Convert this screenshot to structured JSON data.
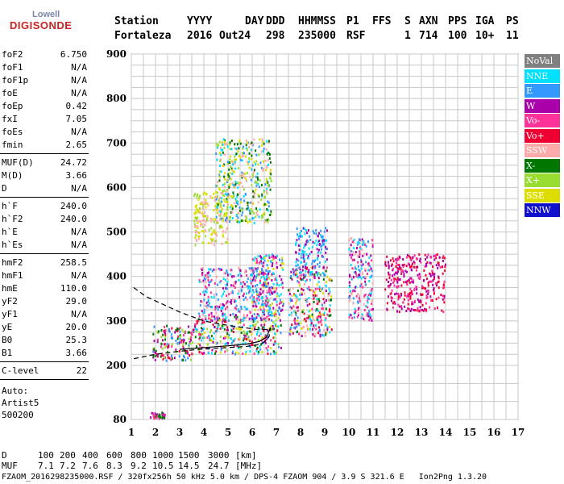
{
  "logo": {
    "line1": "Lowell",
    "line2": "DIGISONDE"
  },
  "header": {
    "labels": [
      "Station",
      "YYYY",
      "DAY",
      "DDD",
      "HHMMSS",
      "P1",
      "FFS",
      "S",
      "AXN",
      "PPS",
      "IGA",
      "PS"
    ],
    "values": [
      "Fortaleza",
      "2016",
      "Out24",
      "298",
      "235000",
      "RSF",
      "",
      "1",
      "714",
      "100",
      "10+",
      "11"
    ]
  },
  "params_group1": [
    {
      "label": "foF2",
      "value": "6.750"
    },
    {
      "label": "foF1",
      "value": "N/A"
    },
    {
      "label": "foF1p",
      "value": "N/A"
    },
    {
      "label": "foE",
      "value": "N/A"
    },
    {
      "label": "foEp",
      "value": "0.42"
    },
    {
      "label": "fxI",
      "value": "7.05"
    },
    {
      "label": "foEs",
      "value": "N/A"
    },
    {
      "label": "fmin",
      "value": "2.65"
    }
  ],
  "params_group2": [
    {
      "label": "MUF(D)",
      "value": "24.72"
    },
    {
      "label": "M(D)",
      "value": "3.66"
    },
    {
      "label": "D",
      "value": "N/A"
    }
  ],
  "params_group3": [
    {
      "label": "h`F",
      "value": "240.0"
    },
    {
      "label": "h`F2",
      "value": "240.0"
    },
    {
      "label": "h`E",
      "value": "N/A"
    },
    {
      "label": "h`Es",
      "value": "N/A"
    }
  ],
  "params_group4": [
    {
      "label": "hmF2",
      "value": "258.5"
    },
    {
      "label": "hmF1",
      "value": "N/A"
    },
    {
      "label": "hmE",
      "value": "110.0"
    },
    {
      "label": "yF2",
      "value": "29.0"
    },
    {
      "label": "yF1",
      "value": "N/A"
    },
    {
      "label": "yE",
      "value": "20.0"
    },
    {
      "label": "B0",
      "value": "25.3"
    },
    {
      "label": "B1",
      "value": "3.66"
    }
  ],
  "clevel": {
    "label": "C-level",
    "value": "22"
  },
  "auto": {
    "line1": "Auto:",
    "line2": "Artist5",
    "line3": "500200"
  },
  "legend": [
    {
      "label": "NoVal",
      "color": "#808080"
    },
    {
      "label": "NNE",
      "color": "#00e0ff"
    },
    {
      "label": "E",
      "color": "#3399ff"
    },
    {
      "label": "W",
      "color": "#aa00aa"
    },
    {
      "label": "Vo-",
      "color": "#ff3399"
    },
    {
      "label": "Vo+",
      "color": "#ee0033"
    },
    {
      "label": "SSW",
      "color": "#ffaaaa"
    },
    {
      "label": "X-",
      "color": "#007700"
    },
    {
      "label": "X+",
      "color": "#99dd33"
    },
    {
      "label": "SSE",
      "color": "#dddd00"
    },
    {
      "label": "NNW",
      "color": "#1111cc"
    }
  ],
  "bottom": {
    "d_label": "D",
    "d_values": [
      "100",
      "200",
      "400",
      "600",
      "800",
      "1000",
      "1500",
      "3000"
    ],
    "d_unit": "[km]",
    "muf_label": "MUF",
    "muf_values": [
      "7.1",
      "7.2",
      "7.6",
      "8.3",
      "9.2",
      "10.5",
      "14.5",
      "24.7"
    ],
    "muf_unit": "[MHz]",
    "footer": "FZAOM_2016298235000.RSF / 320fx256h 50 kHz 5.0 km / DPS-4 FZAOM 904 / 3.9 S 321.6 E   Ion2Png 1.3.20"
  },
  "chart_data": {
    "type": "scatter",
    "xlim": [
      1,
      17
    ],
    "ylim": [
      80,
      900
    ],
    "x_ticks": [
      1,
      2,
      3,
      4,
      5,
      6,
      7,
      8,
      9,
      10,
      11,
      12,
      13,
      14,
      15,
      16,
      17
    ],
    "y_ticks": [
      80,
      200,
      300,
      400,
      500,
      600,
      700,
      800,
      900
    ],
    "grid": true,
    "legend_position": "right",
    "clusters": [
      {
        "x": [
          1.8,
          2.4
        ],
        "y": [
          80,
          95
        ],
        "colors": [
          "#aa00aa",
          "#007700",
          "#ff3399"
        ]
      },
      {
        "x": [
          1.9,
          3.5
        ],
        "y": [
          210,
          290
        ],
        "colors": [
          "#ee0033",
          "#007700",
          "#99dd33",
          "#3399ff",
          "#ff3399",
          "#aa00aa"
        ]
      },
      {
        "x": [
          3.5,
          7.2
        ],
        "y": [
          225,
          310
        ],
        "colors": [
          "#ee0033",
          "#ff3399",
          "#007700",
          "#99dd33",
          "#dddd00",
          "#3399ff",
          "#aa00aa",
          "#00e0ff"
        ]
      },
      {
        "x": [
          3.8,
          6.8
        ],
        "y": [
          300,
          420
        ],
        "colors": [
          "#aa00aa",
          "#ff3399",
          "#3399ff",
          "#ffaaaa",
          "#00e0ff"
        ]
      },
      {
        "x": [
          6.0,
          7.3
        ],
        "y": [
          310,
          450
        ],
        "colors": [
          "#00e0ff",
          "#3399ff",
          "#aa00aa",
          "#dddd00",
          "#ff3399"
        ]
      },
      {
        "x": [
          7.5,
          9.3
        ],
        "y": [
          265,
          420
        ],
        "colors": [
          "#ee0033",
          "#ff3399",
          "#aa00aa",
          "#3399ff",
          "#00e0ff",
          "#007700",
          "#dddd00",
          "#ffaaaa"
        ]
      },
      {
        "x": [
          7.8,
          9.1
        ],
        "y": [
          400,
          510
        ],
        "colors": [
          "#3399ff",
          "#00e0ff",
          "#aa00aa"
        ]
      },
      {
        "x": [
          10.0,
          11.0
        ],
        "y": [
          300,
          490
        ],
        "colors": [
          "#00e0ff",
          "#3399ff",
          "#ffaaaa",
          "#ff3399",
          "#aa00aa"
        ]
      },
      {
        "x": [
          3.6,
          5.0
        ],
        "y": [
          470,
          590
        ],
        "colors": [
          "#dddd00",
          "#99dd33",
          "#ffaaaa"
        ]
      },
      {
        "x": [
          4.5,
          6.8
        ],
        "y": [
          520,
          710
        ],
        "colors": [
          "#dddd00",
          "#99dd33",
          "#3399ff",
          "#00e0ff",
          "#ffaaaa",
          "#007700"
        ]
      },
      {
        "x": [
          11.5,
          14.0
        ],
        "y": [
          320,
          450
        ],
        "colors": [
          "#ff3399",
          "#ee0033",
          "#aa00aa"
        ]
      }
    ],
    "profile_curve": {
      "x": [
        1.1,
        2.0,
        3.0,
        4.0,
        5.0,
        5.8,
        6.2,
        6.5,
        6.7,
        6.75
      ],
      "y": [
        215,
        225,
        232,
        237,
        240,
        243,
        246,
        252,
        265,
        285
      ]
    },
    "profile_curve_upper": {
      "x": [
        1.1,
        1.6,
        2.2,
        3.0,
        4.0,
        5.0,
        5.8,
        6.3,
        6.6,
        6.75
      ],
      "y": [
        375,
        355,
        340,
        320,
        300,
        290,
        284,
        280,
        281,
        285
      ]
    }
  }
}
